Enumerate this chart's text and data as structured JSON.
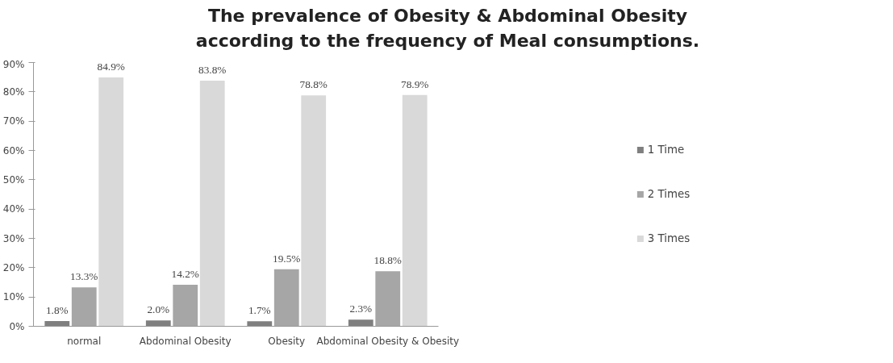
{
  "chart_data": {
    "type": "bar",
    "title": "The prevalence of Obesity & Abdominal Obesity\naccording to the frequency of Meal consumptions.",
    "categories": [
      "normal",
      "Abdominal Obesity",
      "Obesity",
      "Abdominal Obesity & Obesity"
    ],
    "series": [
      {
        "name": "1 Time",
        "color": "#7f7f7f",
        "values": [
          1.8,
          2.0,
          1.7,
          2.3
        ],
        "value_labels": [
          "1.8%",
          "2.0%",
          "1.7%",
          "2.3%"
        ]
      },
      {
        "name": "2 Times",
        "color": "#a6a6a6",
        "values": [
          13.3,
          14.2,
          19.5,
          18.8
        ],
        "value_labels": [
          "13.3%",
          "14.2%",
          "19.5%",
          "18.8%"
        ]
      },
      {
        "name": "3 Times",
        "color": "#d9d9d9",
        "values": [
          84.9,
          83.8,
          78.8,
          78.9
        ],
        "value_labels": [
          "84.9%",
          "83.8%",
          "78.8%",
          "78.9%"
        ]
      }
    ],
    "ylim": [
      0,
      90
    ],
    "yticks": [
      {
        "value": 0,
        "label": "0%"
      },
      {
        "value": 10,
        "label": "10%"
      },
      {
        "value": 20,
        "label": "20%"
      },
      {
        "value": 30,
        "label": "30%"
      },
      {
        "value": 40,
        "label": "40%"
      },
      {
        "value": 50,
        "label": "50%"
      },
      {
        "value": 60,
        "label": "60%"
      },
      {
        "value": 70,
        "label": "70%"
      },
      {
        "value": 80,
        "label": "80%"
      },
      {
        "value": 90,
        "label": "90%"
      }
    ],
    "grid": false,
    "legend": "right"
  }
}
